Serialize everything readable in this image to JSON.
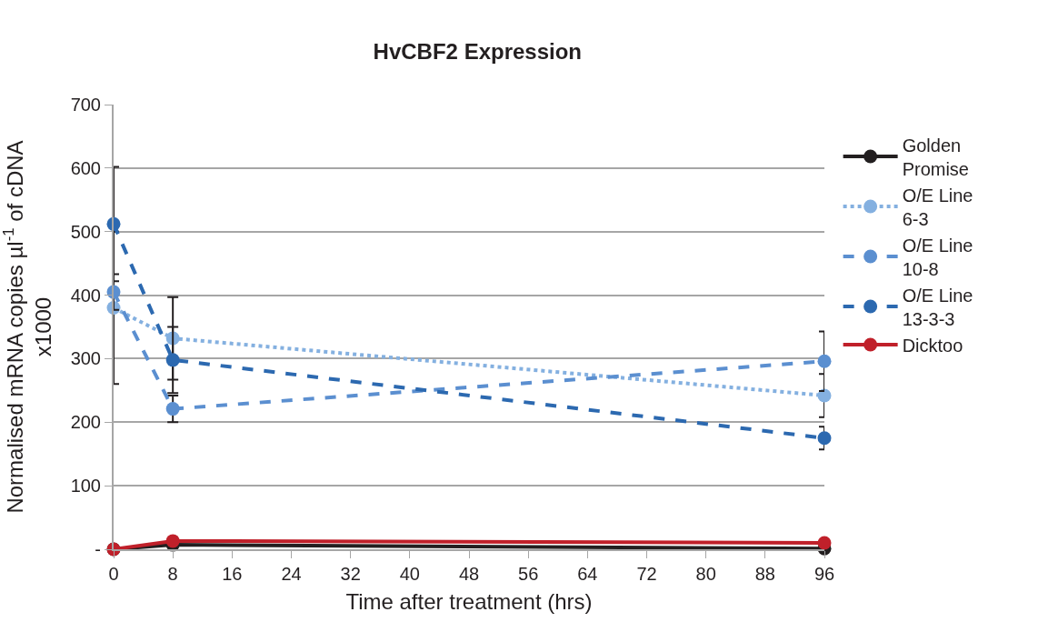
{
  "chart_data": {
    "type": "line",
    "title": "HvCBF2 Expression",
    "xlabel": "Time after treatment (hrs)",
    "ylabel": "Normalised mRNA copies µl$^{-1}$ of cDNA\nx1000",
    "x": [
      0,
      8,
      96
    ],
    "series": [
      {
        "name": "Golden Promise",
        "color": "#231f20",
        "values": [
          0,
          7,
          1
        ],
        "line_style": "solid"
      },
      {
        "name": "O/E Line 6-3",
        "color": "#84b0e0",
        "values": [
          380,
          332,
          242
        ],
        "errors": [
          120,
          65,
          34
        ],
        "line_style": "dotted"
      },
      {
        "name": "O/E Line 10-8",
        "color": "#5b8fd0",
        "values": [
          405,
          221,
          296
        ],
        "errors": [
          28,
          21,
          47
        ],
        "line_style": "dashed"
      },
      {
        "name": "O/E Line 13-3-3",
        "color": "#2c69b0",
        "values": [
          512,
          298,
          175
        ],
        "errors": [
          90,
          52,
          18
        ],
        "line_style": "dashed"
      },
      {
        "name": "Dicktoo",
        "color": "#c0202a",
        "values": [
          0,
          13,
          10
        ],
        "line_style": "solid"
      }
    ],
    "xlim": [
      0,
      96
    ],
    "xticks": [
      0,
      8,
      16,
      24,
      32,
      40,
      48,
      56,
      64,
      72,
      80,
      88,
      96
    ],
    "ylim": [
      0,
      700
    ],
    "yticks": [
      {
        "value": 0,
        "label": "-"
      },
      100,
      200,
      300,
      400,
      500,
      600,
      700
    ],
    "grid": "y",
    "legend": "right",
    "marker": "circle"
  }
}
